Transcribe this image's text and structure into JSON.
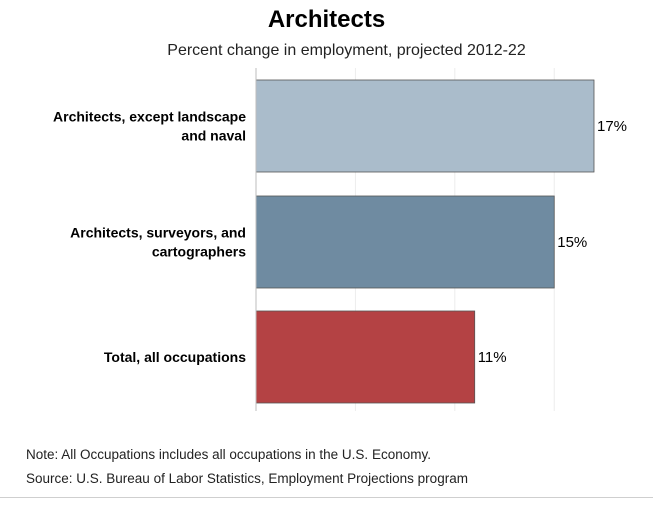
{
  "chart_data": {
    "type": "bar",
    "orientation": "horizontal",
    "title": "Architects",
    "subtitle": "Percent change in employment, projected 2012-22",
    "categories": [
      [
        "Architects, except landscape",
        "and naval"
      ],
      [
        "Architects, surveyors, and",
        "cartographers"
      ],
      [
        "Total, all occupations"
      ]
    ],
    "values": [
      17,
      15,
      11
    ],
    "value_labels": [
      "17%",
      "15%",
      "11%"
    ],
    "colors": [
      "#aabccb",
      "#6f8ba1",
      "#b44244"
    ],
    "xlim": [
      0,
      17
    ],
    "grid": true
  },
  "notes": {
    "note": "Note: All Occupations includes all occupations in the U.S. Economy.",
    "source": "Source: U.S. Bureau of Labor Statistics, Employment Projections program"
  }
}
